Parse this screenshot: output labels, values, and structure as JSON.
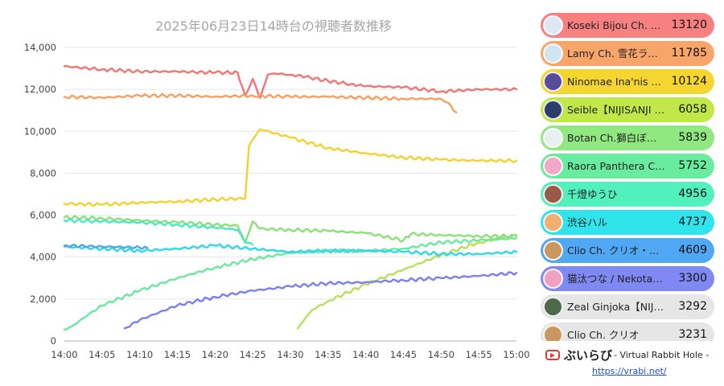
{
  "chart_data": {
    "type": "line",
    "title": "2025年06月23日14時台の視聴者数推移",
    "xlabel": "",
    "ylabel": "",
    "xlim": [
      "14:00",
      "15:00"
    ],
    "ylim": [
      0,
      14000
    ],
    "x_ticks": [
      "14:00",
      "14:05",
      "14:10",
      "14:15",
      "14:20",
      "14:25",
      "14:30",
      "14:35",
      "14:40",
      "14:45",
      "14:50",
      "14:55",
      "15:00"
    ],
    "y_ticks": [
      "0",
      "2,000",
      "4,000",
      "6,000",
      "8,000",
      "10,000",
      "12,000",
      "14,000"
    ],
    "grid": true,
    "legend_position": "right",
    "series": [
      {
        "name": "Koseki Bijou Ch. ホロライブEN",
        "color": "#f07575",
        "points": [
          [
            "14:00",
            13100
          ],
          [
            "14:05",
            12950
          ],
          [
            "14:10",
            12850
          ],
          [
            "14:15",
            12850
          ],
          [
            "14:20",
            12800
          ],
          [
            "14:23",
            12800
          ],
          [
            "14:24",
            11700
          ],
          [
            "14:25",
            12500
          ],
          [
            "14:26",
            11600
          ],
          [
            "14:27",
            12700
          ],
          [
            "14:28",
            12750
          ],
          [
            "14:30",
            12700
          ],
          [
            "14:32",
            12600
          ],
          [
            "14:35",
            12400
          ],
          [
            "14:38",
            12250
          ],
          [
            "14:40",
            12150
          ],
          [
            "14:45",
            12100
          ],
          [
            "14:50",
            11900
          ],
          [
            "14:55",
            12000
          ],
          [
            "15:00",
            12000
          ]
        ]
      },
      {
        "name": "Lamy Ch. 雪花ラミィ",
        "color": "#f5a060",
        "points": [
          [
            "14:00",
            11650
          ],
          [
            "14:05",
            11600
          ],
          [
            "14:10",
            11700
          ],
          [
            "14:15",
            11700
          ],
          [
            "14:20",
            11650
          ],
          [
            "14:25",
            11700
          ],
          [
            "14:30",
            11650
          ],
          [
            "14:35",
            11650
          ],
          [
            "14:40",
            11600
          ],
          [
            "14:45",
            11550
          ],
          [
            "14:50",
            11550
          ],
          [
            "14:51",
            11350
          ],
          [
            "14:52",
            10900
          ]
        ]
      },
      {
        "name": "Ninomae Ina'nis Ch. hololive-EN",
        "color": "#f2d22e",
        "points": [
          [
            "14:00",
            6550
          ],
          [
            "14:05",
            6500
          ],
          [
            "14:10",
            6600
          ],
          [
            "14:15",
            6650
          ],
          [
            "14:20",
            6750
          ],
          [
            "14:24",
            6800
          ],
          [
            "14:24.5",
            9300
          ],
          [
            "14:25",
            9600
          ],
          [
            "14:26",
            10100
          ],
          [
            "14:28",
            9900
          ],
          [
            "14:30",
            9700
          ],
          [
            "14:35",
            9200
          ],
          [
            "14:40",
            8950
          ],
          [
            "14:45",
            8750
          ],
          [
            "14:50",
            8650
          ],
          [
            "14:55",
            8600
          ],
          [
            "15:00",
            8600
          ]
        ]
      },
      {
        "name": "Seible【NIJISANJI EN】",
        "color": "#b8e05a",
        "points": [
          [
            "14:31",
            600
          ],
          [
            "14:32",
            1100
          ],
          [
            "14:33",
            1500
          ],
          [
            "14:35",
            1900
          ],
          [
            "14:40",
            2700
          ],
          [
            "14:45",
            3400
          ],
          [
            "14:50",
            4100
          ],
          [
            "14:55",
            4700
          ],
          [
            "15:00",
            5050
          ]
        ]
      },
      {
        "name": "Botan Ch.獅白ぼたん",
        "color": "#8ce07a",
        "points": [
          [
            "14:00",
            5900
          ],
          [
            "14:05",
            5850
          ],
          [
            "14:10",
            5750
          ],
          [
            "14:15",
            5650
          ],
          [
            "14:20",
            5550
          ],
          [
            "14:23",
            5500
          ],
          [
            "14:24",
            4700
          ],
          [
            "14:25",
            5700
          ],
          [
            "14:26",
            5350
          ],
          [
            "14:30",
            5300
          ],
          [
            "14:35",
            5250
          ],
          [
            "14:40",
            5150
          ],
          [
            "14:45",
            4800
          ],
          [
            "14:46",
            5100
          ],
          [
            "14:50",
            5050
          ],
          [
            "14:55",
            5000
          ],
          [
            "15:00",
            5000
          ]
        ]
      },
      {
        "name": "Raora Panthera Ch. hololive-EN",
        "color": "#6ae8a0",
        "points": [
          [
            "14:00",
            550
          ],
          [
            "14:01",
            700
          ],
          [
            "14:03",
            1200
          ],
          [
            "14:05",
            1700
          ],
          [
            "14:10",
            2400
          ],
          [
            "14:15",
            3000
          ],
          [
            "14:20",
            3500
          ],
          [
            "14:25",
            3900
          ],
          [
            "14:30",
            4200
          ],
          [
            "14:35",
            4300
          ],
          [
            "14:40",
            4300
          ],
          [
            "14:45",
            4400
          ],
          [
            "14:50",
            4700
          ],
          [
            "14:55",
            4800
          ],
          [
            "15:00",
            4900
          ]
        ]
      },
      {
        "name": "千燈ゆうひ",
        "color": "#4ee8c0",
        "points": [
          [
            "14:00",
            5750
          ],
          [
            "14:05",
            5700
          ],
          [
            "14:10",
            5650
          ],
          [
            "14:15",
            5550
          ],
          [
            "14:20",
            5400
          ],
          [
            "14:22",
            5350
          ],
          [
            "14:23",
            5300
          ],
          [
            "14:24",
            4700
          ],
          [
            "14:25",
            4600
          ]
        ]
      },
      {
        "name": "渋谷ハル",
        "color": "#2ed8e8",
        "points": [
          [
            "14:00",
            4500
          ],
          [
            "14:05",
            4400
          ],
          [
            "14:10",
            4300
          ],
          [
            "14:15",
            4400
          ],
          [
            "14:20",
            4550
          ],
          [
            "14:25",
            4400
          ],
          [
            "14:30",
            4250
          ],
          [
            "14:35",
            4300
          ],
          [
            "14:40",
            4300
          ],
          [
            "14:45",
            4250
          ],
          [
            "14:50",
            4150
          ],
          [
            "14:55",
            4150
          ],
          [
            "15:00",
            4250
          ]
        ]
      },
      {
        "name": "Clio Ch. クリオ・ホロライブ",
        "color": "#4aa8f0",
        "points": [
          [
            "14:00",
            4550
          ],
          [
            "14:05",
            4500
          ],
          [
            "14:11",
            4450
          ]
        ]
      },
      {
        "name": "猫汰つな / Nekota Tsuna",
        "color": "#7a80f0",
        "points": [
          [
            "14:08",
            600
          ],
          [
            "14:10",
            1000
          ],
          [
            "14:15",
            1700
          ],
          [
            "14:20",
            2100
          ],
          [
            "14:25",
            2400
          ],
          [
            "14:30",
            2600
          ],
          [
            "14:35",
            2750
          ],
          [
            "14:40",
            2800
          ],
          [
            "14:45",
            2900
          ],
          [
            "14:50",
            3000
          ],
          [
            "14:55",
            3100
          ],
          [
            "15:00",
            3250
          ]
        ]
      }
    ]
  },
  "legend": {
    "items": [
      {
        "name": "Koseki Bijou Ch. ホロライブEN",
        "value": "13120",
        "bg": "#f78080",
        "avatar": "#dfe6f4"
      },
      {
        "name": "Lamy Ch. 雪花ラミィ",
        "value": "11785",
        "bg": "#f8a56a",
        "avatar": "#cfe6f2"
      },
      {
        "name": "Ninomae Ina'nis Ch. hololive-EN",
        "value": "10124",
        "bg": "#f5d530",
        "avatar": "#5a4a9a"
      },
      {
        "name": "Seible【NIJISANJI EN】",
        "value": "6058",
        "bg": "#c0e848",
        "avatar": "#2c3e6c"
      },
      {
        "name": "Botan Ch.獅白ぼたん",
        "value": "5839",
        "bg": "#90e880",
        "avatar": "#e8eef2"
      },
      {
        "name": "Raora Panthera Ch. hololive-EN",
        "value": "5752",
        "bg": "#68eca0",
        "avatar": "#f2a8c8"
      },
      {
        "name": "千燈ゆうひ",
        "value": "4956",
        "bg": "#52f0bc",
        "avatar": "#9a5a48"
      },
      {
        "name": "渋谷ハル",
        "value": "4737",
        "bg": "#30e4ec",
        "avatar": "#f0b070"
      },
      {
        "name": "Clio Ch. クリオ・ホロライブ",
        "value": "4609",
        "bg": "#50a8f4",
        "avatar": "#c89860"
      },
      {
        "name": "猫汰つな / Nekota Tsuna",
        "value": "3300",
        "bg": "#8088f4",
        "avatar": "#f0a0c0"
      },
      {
        "name": "Zeal Ginjoka【NIJISANJI EN】",
        "value": "3292",
        "bg": "#e6e6e6",
        "avatar": "#4a6a4a"
      },
      {
        "name": "Clio Ch. クリオ",
        "value": "3231",
        "bg": "#e6e6e6",
        "avatar": "#c89860"
      }
    ]
  },
  "footer": {
    "brand_name": "ぶいらび",
    "brand_sub": "- Virtual Rabbit Hole -",
    "url": "https://vrabi.net/"
  }
}
